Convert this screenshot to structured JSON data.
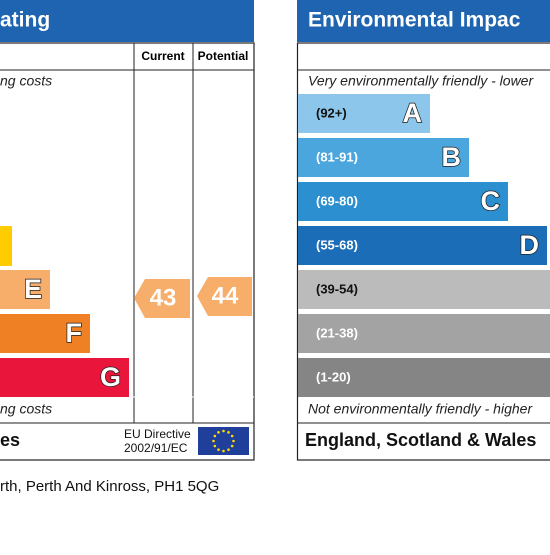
{
  "left_panel": {
    "title": "ating",
    "top_note": "ng costs",
    "column_headers": [
      "Current",
      "Potential"
    ],
    "bands": [
      {
        "letter": "E"
      },
      {
        "letter": "F"
      },
      {
        "letter": "G"
      }
    ],
    "current": 43,
    "potential": 44,
    "bottom_note": "ng costs",
    "footer": "es",
    "directive": [
      "EU Directive",
      "2002/91/EC"
    ]
  },
  "right_panel": {
    "title": "Environmental Impac",
    "top_note": "Very environmentally friendly - lower",
    "bands": [
      {
        "range": "(92+)",
        "letter": "A"
      },
      {
        "range": "(81-91)",
        "letter": "B"
      },
      {
        "range": "(69-80)",
        "letter": "C"
      },
      {
        "range": "(55-68)",
        "letter": "D"
      },
      {
        "range": "(39-54)"
      },
      {
        "range": "(21-38)"
      },
      {
        "range": "(1-20)"
      }
    ],
    "bottom_note": "Not environmentally friendly - higher",
    "footer": "England, Scotland & Wales"
  },
  "address": "rth, Perth And Kinross, PH1 5QG"
}
